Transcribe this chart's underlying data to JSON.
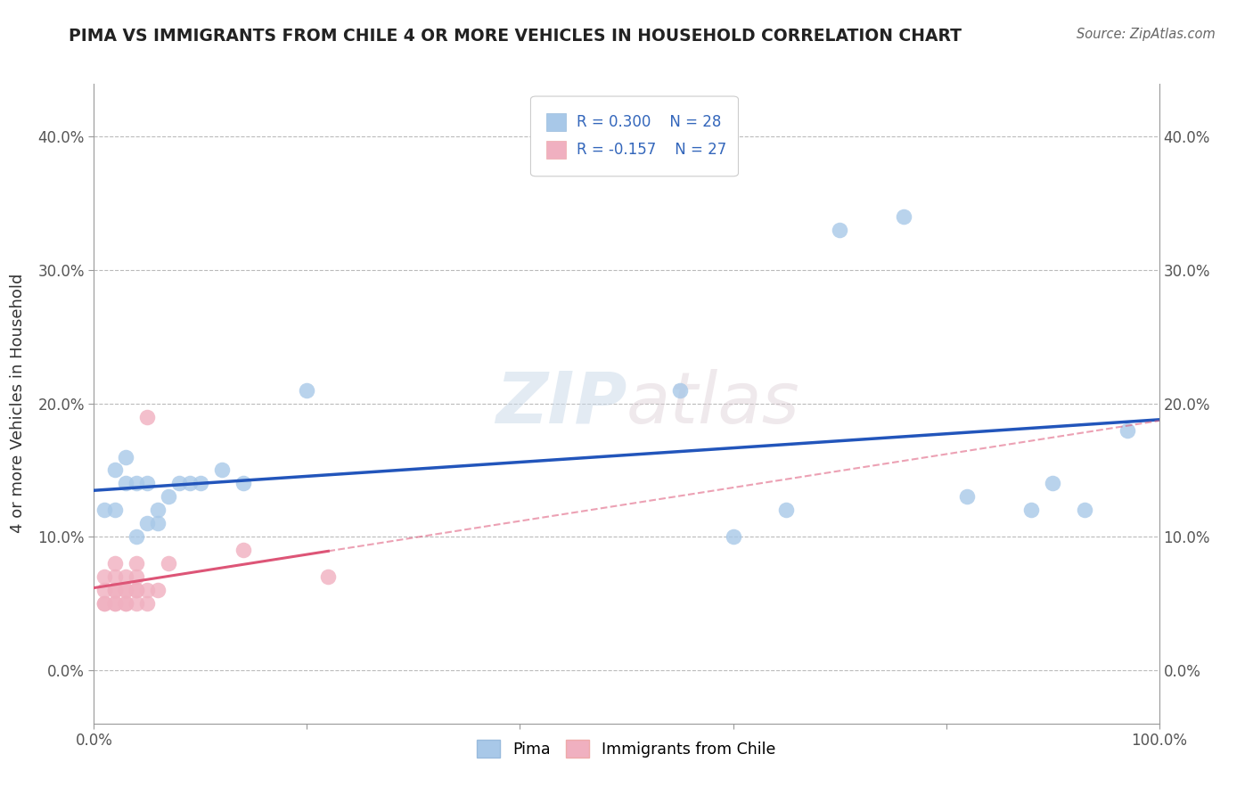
{
  "title": "PIMA VS IMMIGRANTS FROM CHILE 4 OR MORE VEHICLES IN HOUSEHOLD CORRELATION CHART",
  "source": "Source: ZipAtlas.com",
  "ylabel": "4 or more Vehicles in Household",
  "legend_label_1": "Pima",
  "legend_label_2": "Immigrants from Chile",
  "R1": 0.3,
  "N1": 28,
  "R2": -0.157,
  "N2": 27,
  "xlim": [
    0.0,
    1.0
  ],
  "ylim": [
    -0.04,
    0.44
  ],
  "xticks": [
    0.0,
    0.2,
    0.4,
    0.6,
    0.8,
    1.0
  ],
  "xtick_labels": [
    "0.0%",
    "",
    "",
    "",
    "",
    "100.0%"
  ],
  "yticks": [
    0.0,
    0.1,
    0.2,
    0.3,
    0.4
  ],
  "ytick_labels": [
    "0.0%",
    "10.0%",
    "20.0%",
    "30.0%",
    "40.0%"
  ],
  "color_pima": "#a8c8e8",
  "color_chile": "#f0b0c0",
  "color_line_pima": "#2255bb",
  "color_line_chile": "#dd5577",
  "watermark_color": "#dce8f0",
  "pima_x": [
    0.01,
    0.02,
    0.02,
    0.03,
    0.03,
    0.04,
    0.04,
    0.05,
    0.05,
    0.06,
    0.06,
    0.07,
    0.08,
    0.09,
    0.1,
    0.12,
    0.14,
    0.2,
    0.55,
    0.6,
    0.65,
    0.7,
    0.76,
    0.82,
    0.88,
    0.9,
    0.93,
    0.97
  ],
  "pima_y": [
    0.12,
    0.12,
    0.15,
    0.14,
    0.16,
    0.1,
    0.14,
    0.11,
    0.14,
    0.12,
    0.11,
    0.13,
    0.14,
    0.14,
    0.14,
    0.15,
    0.14,
    0.21,
    0.21,
    0.1,
    0.12,
    0.33,
    0.34,
    0.13,
    0.12,
    0.14,
    0.12,
    0.18
  ],
  "chile_x": [
    0.01,
    0.01,
    0.01,
    0.01,
    0.02,
    0.02,
    0.02,
    0.02,
    0.02,
    0.02,
    0.03,
    0.03,
    0.03,
    0.03,
    0.03,
    0.04,
    0.04,
    0.04,
    0.04,
    0.04,
    0.05,
    0.05,
    0.05,
    0.06,
    0.07,
    0.14,
    0.22
  ],
  "chile_y": [
    0.05,
    0.05,
    0.06,
    0.07,
    0.05,
    0.05,
    0.06,
    0.06,
    0.07,
    0.08,
    0.05,
    0.05,
    0.06,
    0.06,
    0.07,
    0.05,
    0.06,
    0.06,
    0.07,
    0.08,
    0.05,
    0.06,
    0.19,
    0.06,
    0.08,
    0.09,
    0.07
  ]
}
